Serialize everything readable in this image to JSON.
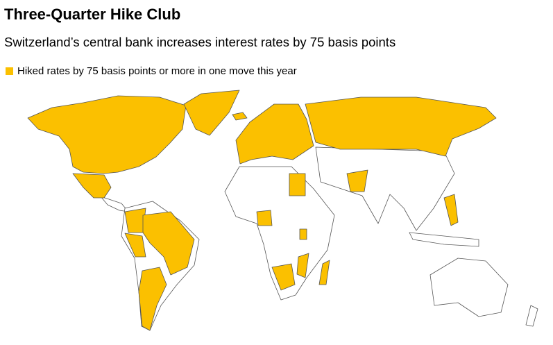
{
  "header": {
    "title": "Three-Quarter Hike Club",
    "subtitle": "Switzerland’s central bank increases interest rates by 75 basis points"
  },
  "legend": {
    "label": "Hiked rates by 75 basis points or more in one move this year",
    "color": "#fbc000"
  }
}
